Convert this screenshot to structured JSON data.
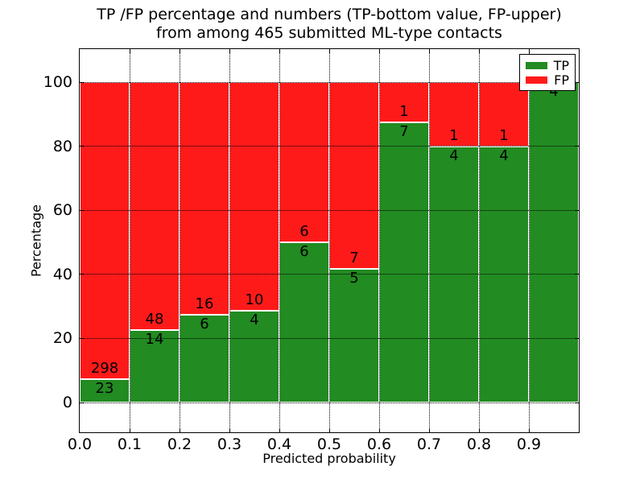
{
  "title": {
    "line1": "TP /FP percentage and numbers (TP-bottom value, FP-upper)",
    "line2": "from among 465 submitted ML-type contacts"
  },
  "axes": {
    "x_label": "Predicted probability",
    "y_label": "Percentage",
    "x_ticks": [
      "0.0",
      "0.1",
      "0.2",
      "0.3",
      "0.4",
      "0.5",
      "0.6",
      "0.7",
      "0.8",
      "0.9"
    ],
    "y_ticks": [
      0,
      20,
      40,
      60,
      80,
      100
    ]
  },
  "legend": {
    "items": [
      {
        "label": "TP",
        "color": "#228b22"
      },
      {
        "label": "FP",
        "color": "#ff1a1a"
      }
    ],
    "position": "upper right"
  },
  "colors": {
    "tp": "#228b22",
    "fp": "#ff1a1a",
    "bar_edge": "#ffffff",
    "grid": "#000000",
    "background": "#ffffff",
    "text": "#000000"
  },
  "chart_data": {
    "type": "bar",
    "stacked": true,
    "normalized": "percent",
    "title": "TP /FP percentage and numbers (TP-bottom value, FP-upper) from among 465 submitted ML-type contacts",
    "xlabel": "Predicted probability",
    "ylabel": "Percentage",
    "xlim": [
      0.0,
      1.0
    ],
    "ylim": [
      -9.5,
      110.5
    ],
    "bin_width": 0.1,
    "categories": [
      "0.0-0.1",
      "0.1-0.2",
      "0.2-0.3",
      "0.3-0.4",
      "0.4-0.5",
      "0.5-0.6",
      "0.6-0.7",
      "0.7-0.8",
      "0.8-0.9",
      "0.9-1.0"
    ],
    "series": [
      {
        "name": "TP",
        "color": "#228b22",
        "counts": [
          23,
          14,
          6,
          4,
          6,
          5,
          7,
          4,
          4,
          4
        ]
      },
      {
        "name": "FP",
        "color": "#ff1a1a",
        "counts": [
          298,
          48,
          16,
          10,
          6,
          7,
          1,
          1,
          1,
          0
        ]
      }
    ],
    "tp_percent": [
      7.2,
      22.6,
      27.3,
      28.6,
      50.0,
      41.7,
      87.5,
      80.0,
      80.0,
      100.0
    ],
    "total_contacts": 465,
    "grid": {
      "visible": true,
      "linestyle": "dotted",
      "color": "#000000",
      "above_bars": true
    },
    "legend_position": "upper right"
  }
}
